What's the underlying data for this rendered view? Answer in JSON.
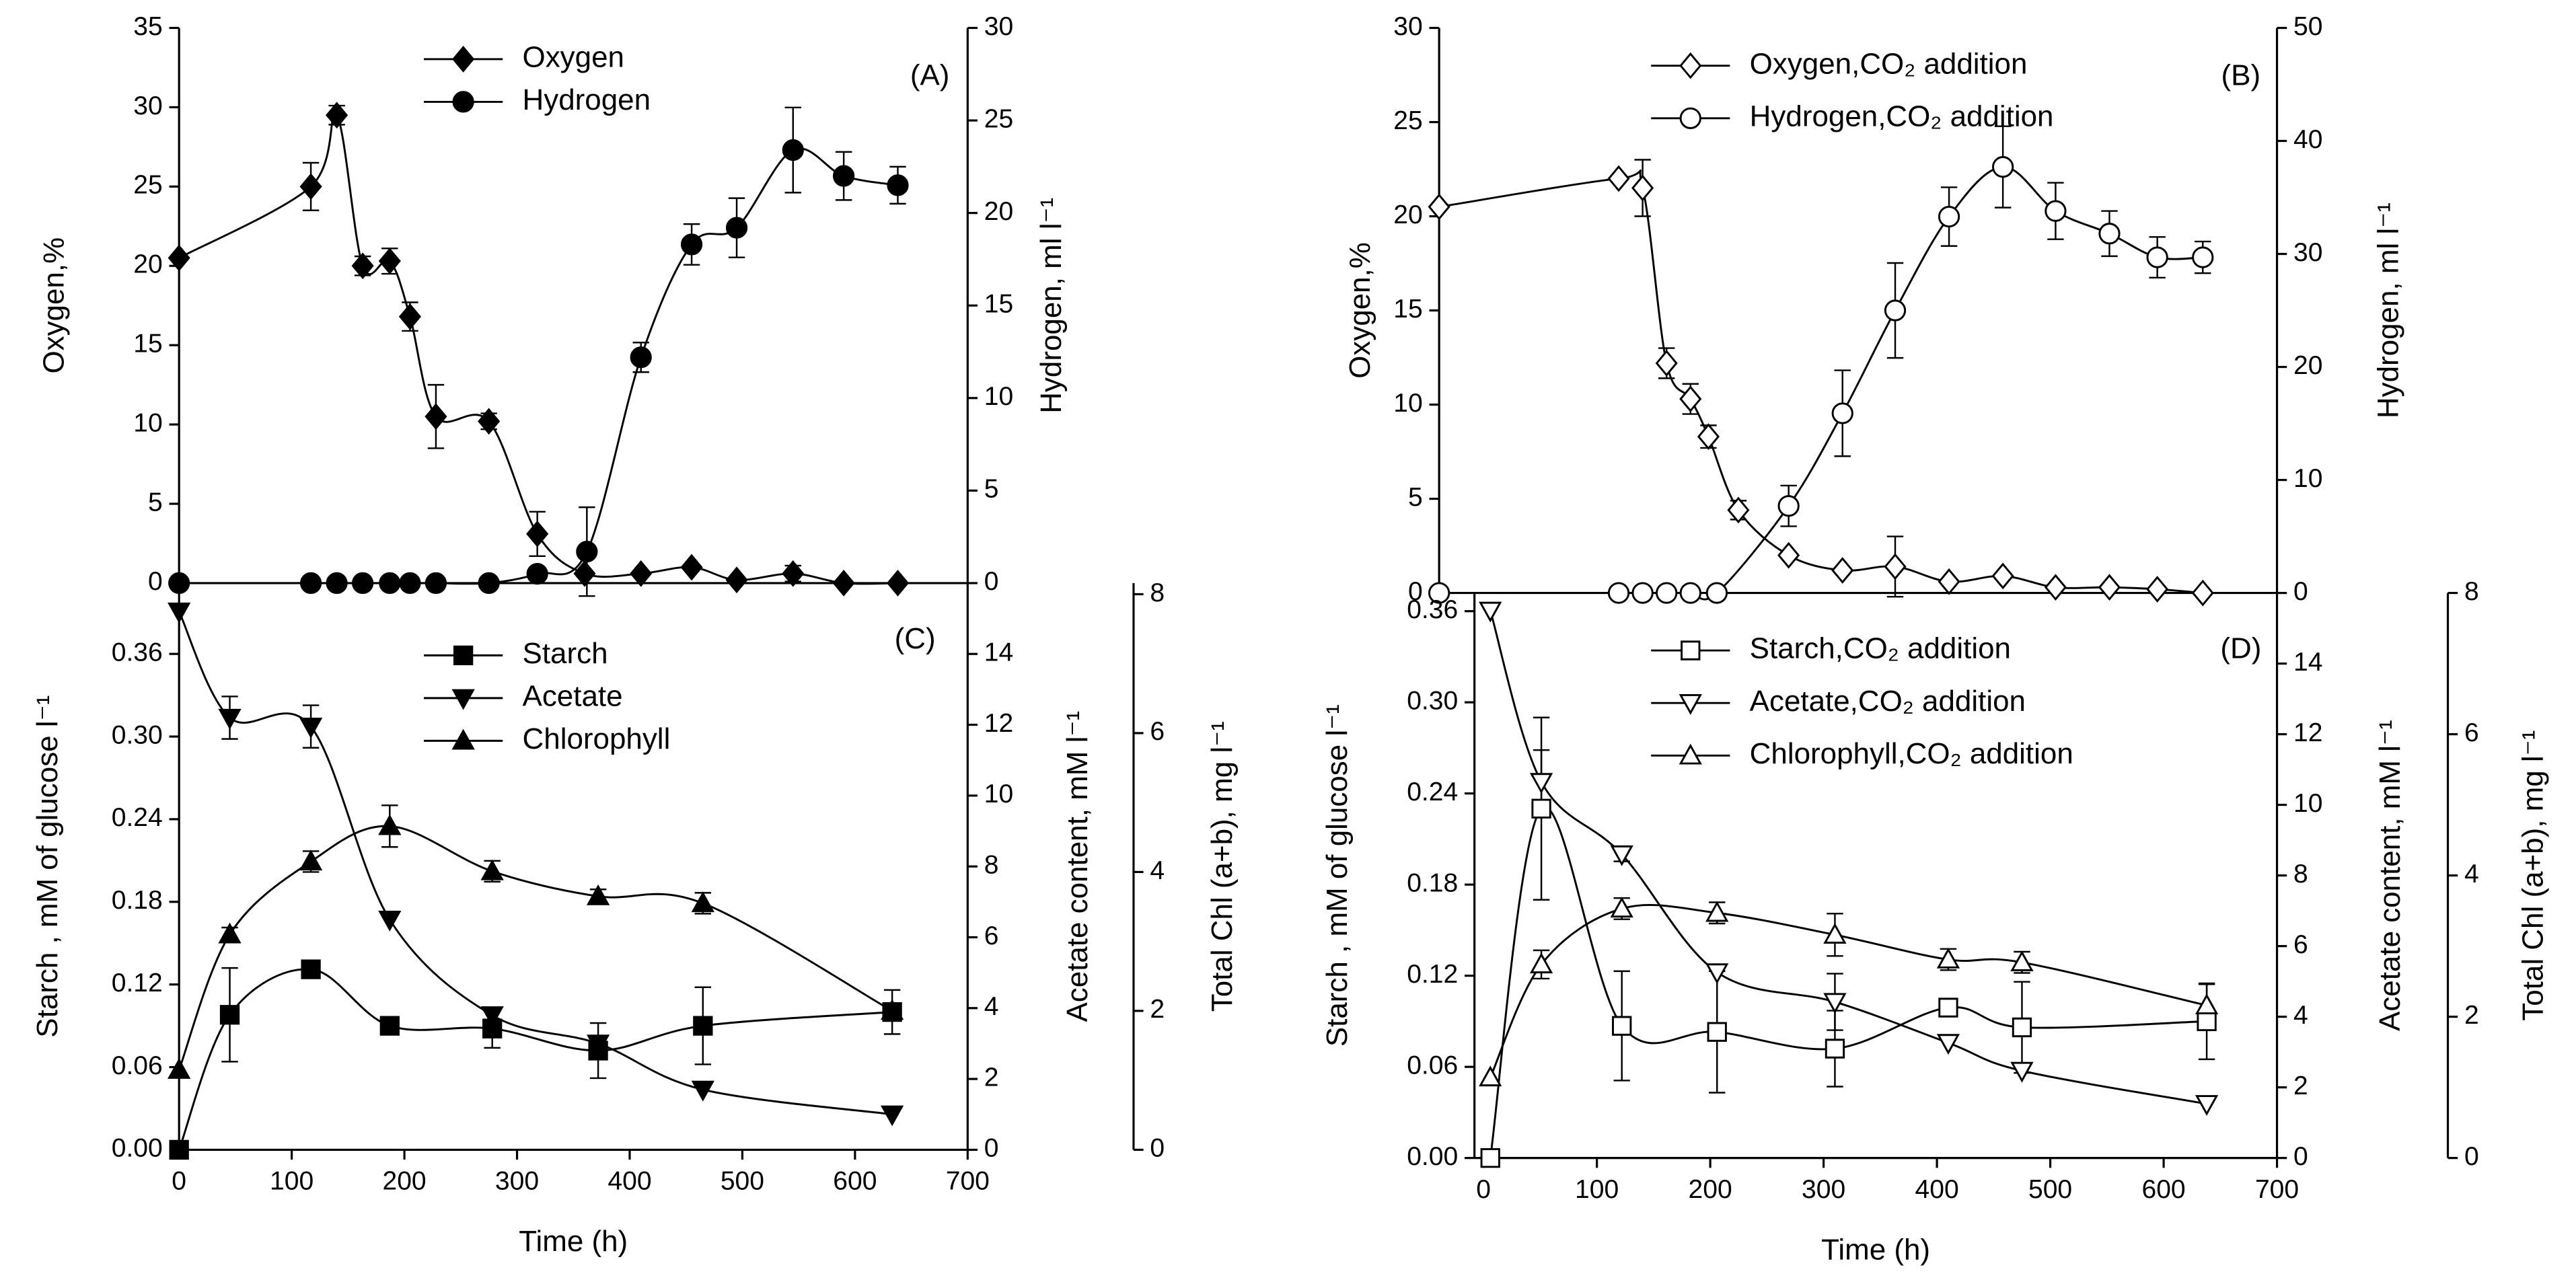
{
  "chart_data": [
    {
      "type": "line",
      "title": "(A)",
      "xlim": [
        0,
        700
      ],
      "ylabel": "Oxygen,%",
      "ylim": [
        0,
        35
      ],
      "yticks": [
        0,
        5,
        10,
        15,
        20,
        25,
        30,
        35
      ],
      "y2label": "Hydrogen, ml l⁻¹",
      "y2lim": [
        0,
        30
      ],
      "y2ticks": [
        0,
        5,
        10,
        15,
        20,
        25,
        30
      ],
      "series": [
        {
          "name": "Oxygen",
          "color": "#000000",
          "marker": "diamond",
          "marker_fill": "#000000",
          "x": [
            0,
            117,
            140,
            163,
            187,
            205,
            228,
            275,
            318,
            360,
            410,
            455,
            495,
            545,
            590,
            638
          ],
          "values": [
            20.5,
            25,
            29.5,
            20,
            20.3,
            16.8,
            10.5,
            10.2,
            3.1,
            0.6,
            0.6,
            1,
            0.2,
            0.6,
            0,
            0
          ],
          "errors": [
            null,
            1.5,
            0.6,
            0.6,
            0.8,
            0.9,
            2,
            0.5,
            1.4,
            null,
            null,
            null,
            null,
            0.5,
            null,
            null
          ]
        },
        {
          "name": "Hydrogen",
          "color": "#000000",
          "marker": "circle",
          "marker_fill": "#000000",
          "axis": "y2",
          "x": [
            0,
            117,
            140,
            163,
            187,
            205,
            228,
            275,
            318,
            362,
            410,
            455,
            495,
            545,
            590,
            638
          ],
          "values": [
            0,
            0,
            0,
            0,
            0,
            0,
            0,
            0,
            0.5,
            1.7,
            12.2,
            18.3,
            19.2,
            23.4,
            22,
            21.5
          ],
          "errors": [
            null,
            null,
            null,
            null,
            null,
            null,
            null,
            null,
            null,
            2.4,
            0.8,
            1.1,
            1.6,
            2.3,
            1.3,
            1
          ]
        }
      ]
    },
    {
      "type": "line",
      "title": "(B)",
      "xlim": [
        0,
        700
      ],
      "ylabel": "Oxygen,%",
      "ylim": [
        0,
        30
      ],
      "yticks": [
        0,
        5,
        10,
        15,
        20,
        25,
        30
      ],
      "y2label": "Hydrogen, ml l⁻¹",
      "y2lim": [
        0,
        50
      ],
      "y2ticks": [
        0,
        10,
        20,
        30,
        40,
        50
      ],
      "series": [
        {
          "name": "Oxygen,CO₂ addition",
          "color": "#000000",
          "marker": "diamond",
          "marker_fill": "#ffffff",
          "x": [
            0,
            150,
            170,
            190,
            210,
            225,
            250,
            292,
            337,
            381,
            426,
            471,
            515,
            560,
            600,
            638
          ],
          "values": [
            20.5,
            22,
            21.5,
            12.2,
            10.3,
            8.3,
            4.4,
            2.0,
            1.2,
            1.4,
            0.6,
            0.9,
            0.3,
            0.3,
            0.2,
            0
          ],
          "errors": [
            null,
            null,
            1.5,
            0.8,
            0.8,
            0.6,
            0.5,
            null,
            null,
            1.6,
            null,
            null,
            null,
            null,
            null,
            null
          ]
        },
        {
          "name": "Hydrogen,CO₂ addition",
          "color": "#000000",
          "marker": "circle",
          "marker_fill": "#ffffff",
          "axis": "y2",
          "x": [
            0,
            150,
            170,
            190,
            210,
            232,
            292,
            337,
            381,
            426,
            471,
            515,
            560,
            600,
            638
          ],
          "values": [
            0,
            0,
            0,
            0,
            0,
            0,
            7.7,
            15.9,
            25,
            33.3,
            37.7,
            33.8,
            31.8,
            29.7,
            29.7
          ],
          "errors": [
            null,
            null,
            null,
            null,
            null,
            null,
            1.8,
            3.8,
            4.2,
            2.6,
            3.6,
            2.5,
            2.0,
            1.8,
            1.4
          ]
        }
      ]
    },
    {
      "type": "line",
      "title": "(C)",
      "xlabel": "Time (h)",
      "xlim": [
        0,
        700
      ],
      "xticks": [
        0,
        100,
        200,
        300,
        400,
        500,
        600,
        700
      ],
      "ylabel": "Starch , mM of glucose l⁻¹",
      "ylim": [
        0,
        0.4114
      ],
      "yticks": [
        {
          "value": 0,
          "label": "0.00"
        },
        {
          "value": 0.06,
          "label": "0.06"
        },
        {
          "value": 0.12,
          "label": "0.12"
        },
        {
          "value": 0.18,
          "label": "0.18"
        },
        {
          "value": 0.24,
          "label": "0.24"
        },
        {
          "value": 0.3,
          "label": "0.30"
        },
        {
          "value": 0.36,
          "label": "0.36"
        }
      ],
      "y2label": "Acetate content, mM l⁻¹",
      "y2lim": [
        0,
        16
      ],
      "y2ticks": [
        0,
        2,
        4,
        6,
        8,
        10,
        12,
        14
      ],
      "y3label": "Total Chl (a+b), mg l⁻¹",
      "y3lim": [
        0,
        8.16
      ],
      "y3ticks": [
        0,
        2,
        4,
        6,
        8
      ],
      "series": [
        {
          "name": "Starch",
          "color": "#000000",
          "marker": "square",
          "marker_fill": "#000000",
          "x": [
            0,
            45,
            117,
            187,
            278,
            372,
            465,
            633
          ],
          "values": [
            0,
            0.098,
            0.131,
            0.09,
            0.088,
            0.072,
            0.09,
            0.1
          ],
          "errors": [
            null,
            0.034,
            null,
            null,
            0.014,
            0.02,
            0.028,
            0.016
          ]
        },
        {
          "name": "Acetate",
          "color": "#000000",
          "marker": "triangle-down",
          "marker_fill": "#000000",
          "axis": "y2",
          "x": [
            0,
            45,
            117,
            187,
            278,
            372,
            465,
            633
          ],
          "values": [
            15.2,
            12.2,
            11.95,
            6.5,
            3.8,
            3.0,
            1.7,
            1.0
          ],
          "errors": [
            null,
            0.6,
            0.6,
            null,
            null,
            null,
            null,
            null
          ]
        },
        {
          "name": "Chlorophyll",
          "color": "#000000",
          "marker": "triangle-up",
          "marker_fill": "#000000",
          "axis": "y3",
          "x": [
            0,
            45,
            117,
            187,
            278,
            372,
            465,
            633
          ],
          "values": [
            1.15,
            3.1,
            4.15,
            4.66,
            4.01,
            3.65,
            3.55,
            2.0
          ],
          "errors": [
            null,
            0.1,
            0.15,
            0.3,
            0.15,
            0.1,
            0.15,
            null
          ]
        }
      ]
    },
    {
      "type": "line",
      "title": "(D)",
      "xlabel": "Time (h)",
      "xlim": [
        -8,
        700
      ],
      "xticks": [
        0,
        100,
        200,
        300,
        400,
        500,
        600,
        700
      ],
      "ylabel": "Starch , mM of glucose l⁻¹",
      "ylim": [
        0,
        0.372
      ],
      "yticks": [
        {
          "value": 0,
          "label": "0.00"
        },
        {
          "value": 0.06,
          "label": "0.06"
        },
        {
          "value": 0.12,
          "label": "0.12"
        },
        {
          "value": 0.18,
          "label": "0.18"
        },
        {
          "value": 0.24,
          "label": "0.24"
        },
        {
          "value": 0.3,
          "label": "0.30"
        },
        {
          "value": 0.36,
          "label": "0.36"
        }
      ],
      "y2label": "Acetate content, mM l⁻¹",
      "y2lim": [
        0,
        16
      ],
      "y2ticks": [
        0,
        2,
        4,
        6,
        8,
        10,
        12,
        14
      ],
      "y3label": "Total Chl (a+b), mg l⁻¹",
      "y3lim": [
        0,
        8
      ],
      "y3ticks": [
        0,
        2,
        4,
        6,
        8
      ],
      "series": [
        {
          "name": "Starch,CO₂ addition",
          "color": "#000000",
          "marker": "square",
          "marker_fill": "#ffffff",
          "x": [
            6,
            51,
            122,
            206,
            310,
            410,
            475,
            638
          ],
          "values": [
            0,
            0.23,
            0.087,
            0.083,
            0.072,
            0.099,
            0.086,
            0.09
          ],
          "errors": [
            null,
            0.06,
            0.036,
            0.04,
            0.025,
            null,
            0.03,
            0.025
          ]
        },
        {
          "name": "Acetate,CO₂ addition",
          "color": "#000000",
          "marker": "triangle-down",
          "marker_fill": "#ffffff",
          "axis": "y2",
          "x": [
            6,
            51,
            122,
            206,
            310,
            410,
            475,
            638
          ],
          "values": [
            15.5,
            10.65,
            8.6,
            5.26,
            4.42,
            3.26,
            2.47,
            1.53
          ],
          "errors": [
            null,
            0.9,
            0.2,
            null,
            0.8,
            null,
            null,
            null
          ]
        },
        {
          "name": "Chlorophyll,CO₂ addition",
          "color": "#000000",
          "marker": "triangle-up",
          "marker_fill": "#ffffff",
          "axis": "y3",
          "x": [
            6,
            51,
            122,
            206,
            310,
            410,
            475,
            638
          ],
          "values": [
            1.14,
            2.74,
            3.53,
            3.47,
            3.16,
            2.81,
            2.77,
            2.16
          ],
          "errors": [
            null,
            0.2,
            0.15,
            0.15,
            0.3,
            0.15,
            0.15,
            0.3
          ]
        }
      ]
    }
  ]
}
